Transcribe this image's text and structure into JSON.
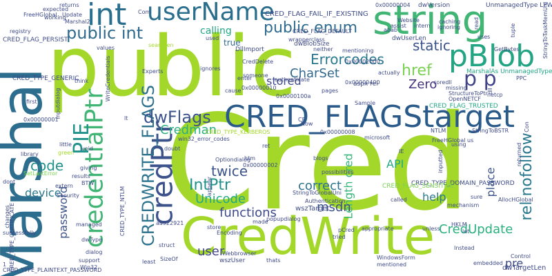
{
  "words": [
    {
      "text": "Cred",
      "color": "#a3d82a"
    },
    {
      "text": "public",
      "color": "#a3d82a"
    },
    {
      "text": "CredWrite",
      "color": "#a3d82a"
    },
    {
      "text": "Marshal",
      "color": "#2d6e8e"
    },
    {
      "text": "string",
      "color": "#41b574"
    },
    {
      "text": "CRED_FLAGStarget",
      "color": "#2a5a8a"
    },
    {
      "text": "userName",
      "color": "#2a6e8e"
    },
    {
      "text": "int",
      "color": "#2a6e8e"
    },
    {
      "text": "credentialPtr",
      "color": "#41b574"
    },
    {
      "text": "credPtr",
      "color": "#3b528b"
    },
    {
      "text": "pBlob",
      "color": "#23a483"
    },
    {
      "text": "public enum",
      "color": "#2f6b8e"
    },
    {
      "text": "public int",
      "color": "#2f6b8e"
    },
    {
      "text": "CREDWRITE_FLAGS",
      "color": "#2c728e"
    },
    {
      "text": "rel nofollow",
      "color": "#2a788e"
    },
    {
      "text": "PIE",
      "color": "#21918c"
    },
    {
      "text": "p p",
      "color": "#414487"
    },
    {
      "text": "dwFlags",
      "color": "#3b528b"
    },
    {
      "text": "IntPtr",
      "color": "#21918c"
    },
    {
      "text": "Credman",
      "color": "#2ab07f"
    },
    {
      "text": "code",
      "color": "#21918c"
    },
    {
      "text": "Errorcodes",
      "color": "#2a788e"
    },
    {
      "text": "CharSet",
      "color": "#31688e"
    },
    {
      "text": "href",
      "color": "#7ad151"
    },
    {
      "text": "static",
      "color": "#3b528b"
    },
    {
      "text": "Zero",
      "color": "#46337e"
    },
    {
      "text": "stored",
      "color": "#3e4a89"
    },
    {
      "text": "Unicode",
      "color": "#22a884"
    },
    {
      "text": "twice",
      "color": "#3b528b"
    },
    {
      "text": "functions",
      "color": "#3e4a89"
    },
    {
      "text": "CredUpdate",
      "color": "#2ab07f"
    },
    {
      "text": "correct",
      "color": "#2c728e"
    },
    {
      "text": "Length cred",
      "color": "#35b779"
    },
    {
      "text": "msdn",
      "color": "#3b528b"
    },
    {
      "text": "device",
      "color": "#2a788e"
    },
    {
      "text": "password",
      "color": "#3b528b"
    },
    {
      "text": "user",
      "color": "#414487"
    },
    {
      "text": "place",
      "color": "#3b528b"
    },
    {
      "text": "help",
      "color": "#2a788e"
    },
    {
      "text": "API",
      "color": "#22a884"
    },
    {
      "text": "calling",
      "color": "#22a884"
    },
    {
      "text": "pre",
      "color": "#3e4a89"
    },
    {
      "text": "true",
      "color": "#31688e"
    },
    {
      "text": "CRED_FLAG_FAIL_IF_EXISTING",
      "color": "#3e4a89"
    },
    {
      "text": "aspx rel",
      "color": "#3e4a89"
    },
    {
      "text": "dwTargetLen",
      "color": "#3e4a89"
    },
    {
      "text": "wszTarget",
      "color": "#3e4a89"
    },
    {
      "text": "dwUserLen",
      "color": "#3e4a89"
    },
    {
      "text": "dwBlobSize",
      "color": "#3e4a89"
    },
    {
      "text": "dwVersion",
      "color": "#3e4a89"
    },
    {
      "text": "CRED_FLAG_PERSIST",
      "color": "#3e4a89"
    },
    {
      "text": "UnmanagedType LPWStr",
      "color": "#3e4a89"
    },
    {
      "text": "MarshalAs UnmanagedType",
      "color": "#22a884"
    },
    {
      "text": "CRED_FLAG_TRUSTED",
      "color": "#22a884"
    },
    {
      "text": "CRED_TYPE_DOMAIN_PASSWORD",
      "color": "#3e4a89"
    },
    {
      "text": "CRED_FLAG_SENSITIVE",
      "color": "#7ad151"
    },
    {
      "text": "CRED_TYPE_GENERIC",
      "color": "#3e4a89"
    },
    {
      "text": "CRED_TYPE_CERTIFICATE",
      "color": "#3e4a89"
    },
    {
      "text": "CRED_TYPE_PLAINTEXT_PASSWORD",
      "color": "#3e4a89"
    },
    {
      "text": "CRED_FLAG_DEFAULT",
      "color": "#3e4a89"
    },
    {
      "text": "CRED_TYPE_NTLM",
      "color": "#3e4a89"
    },
    {
      "text": "CRED_TYPE_KERBEROS",
      "color": "#a3d82a"
    },
    {
      "text": "WriteCredentials",
      "color": "#3e4a89"
    },
    {
      "text": "win32_error_codes",
      "color": "#3e4a89"
    },
    {
      "text": "StringToGlobalUni",
      "color": "#3e4a89"
    },
    {
      "text": "StringToBSTR",
      "color": "#3e4a89"
    },
    {
      "text": "StructureToPtr",
      "color": "#3e4a89"
    },
    {
      "text": "AllocHGlobal",
      "color": "#3e4a89"
    },
    {
      "text": "FreeHGlobal",
      "color": "#3e4a89"
    },
    {
      "text": "FreeHGlobal us",
      "color": "#3e4a89"
    },
    {
      "text": "SetLastError",
      "color": "#7ad151"
    },
    {
      "text": "DllImport",
      "color": "#3e4a89"
    },
    {
      "text": "CredDelete",
      "color": "#3e4a89"
    },
    {
      "text": "popupdialog",
      "color": "#3e4a89"
    },
    {
      "text": "inputdialog",
      "color": "#3e4a89"
    },
    {
      "text": "Optiondialog",
      "color": "#3e4a89"
    },
    {
      "text": "wszUser",
      "color": "#3e4a89"
    },
    {
      "text": "WindowsForm",
      "color": "#3e4a89"
    },
    {
      "text": "Authentication",
      "color": "#3e4a89"
    },
    {
      "text": "authenticate",
      "color": "#3e4a89"
    },
    {
      "text": "wrapperclass",
      "color": "#3e4a89"
    },
    {
      "text": "OpenNETCF",
      "color": "#3e4a89"
    },
    {
      "text": "StringToTaskMemUni",
      "color": "#3e4a89"
    },
    {
      "text": "GetBytes",
      "color": "#3e4a89"
    },
    {
      "text": "mentioning",
      "color": "#3e4a89"
    },
    {
      "text": "possibilities",
      "color": "#3e4a89"
    },
    {
      "text": "appropriate",
      "color": "#3e4a89"
    },
    {
      "text": "mechanism",
      "color": "#3e4a89"
    },
    {
      "text": "successfully",
      "color": "#3e4a89"
    },
    {
      "text": "Encoding",
      "color": "#3e4a89"
    },
    {
      "text": "functions",
      "color": "#3e4a89"
    },
    {
      "text": "0x00000001",
      "color": "#3e4a89"
    },
    {
      "text": "0x00000002",
      "color": "#3e4a89"
    },
    {
      "text": "0x00000004",
      "color": "#3e4a89"
    },
    {
      "text": "0x00000008",
      "color": "#3e4a89"
    },
    {
      "text": "0x00000010",
      "color": "#3e4a89"
    },
    {
      "text": "0x00000400",
      "color": "#3e4a89"
    },
    {
      "text": "0x0000100a",
      "color": "#3e4a89"
    },
    {
      "text": "0x00002000",
      "color": "#3e4a89"
    },
    {
      "text": "aa922921",
      "color": "#3e4a89"
    },
    {
      "text": "Sample",
      "color": "#3e4a89"
    },
    {
      "text": "Experts",
      "color": "#3e4a89"
    },
    {
      "text": "Website",
      "color": "#3e4a89"
    },
    {
      "text": "Instead",
      "color": "#3e4a89"
    },
    {
      "text": "Control",
      "color": "#3e4a89"
    },
    {
      "text": "returns",
      "color": "#3e4a89"
    },
    {
      "text": "expected",
      "color": "#3e4a89"
    },
    {
      "text": "registry",
      "color": "#3e4a89"
    },
    {
      "text": "library",
      "color": "#3e4a89"
    },
    {
      "text": "support",
      "color": "#3e4a89"
    },
    {
      "text": "managed",
      "color": "#3e4a89"
    },
    {
      "text": "struct",
      "color": "#3e4a89"
    },
    {
      "text": "SizeOf",
      "color": "#3e4a89"
    },
    {
      "text": "thats",
      "color": "#3e4a89"
    },
    {
      "text": "unless",
      "color": "#3e4a89"
    },
    {
      "text": "HKLM",
      "color": "#3e4a89"
    },
    {
      "text": "let",
      "color": "#3e4a89"
    },
    {
      "text": "embedded",
      "color": "#3e4a89"
    },
    {
      "text": "mentioned",
      "color": "#3e4a89"
    },
    {
      "text": "dwType",
      "color": "#3e4a89"
    },
    {
      "text": "Security",
      "color": "#3e4a89"
    },
    {
      "text": "results",
      "color": "#3e4a89"
    },
    {
      "text": "giving",
      "color": "#3e4a89"
    },
    {
      "text": "extern",
      "color": "#3e4a89"
    },
    {
      "text": "dialog",
      "color": "#3e4a89"
    },
    {
      "text": "coredll",
      "color": "#3e4a89"
    },
    {
      "text": "missing",
      "color": "#3e4a89"
    },
    {
      "text": "blogs",
      "color": "#3e4a89"
    },
    {
      "text": "called",
      "color": "#3e4a89"
    },
    {
      "text": "tried",
      "color": "#3e4a89"
    },
    {
      "text": "pages",
      "color": "#3e4a89"
    },
    {
      "text": "someone",
      "color": "#3e4a89"
    },
    {
      "text": "enter",
      "color": "#3e4a89"
    },
    {
      "text": "cause",
      "color": "#3e4a89"
    },
    {
      "text": "ignores",
      "color": "#3e4a89"
    },
    {
      "text": "actually",
      "color": "#3e4a89"
    },
    {
      "text": "neither",
      "color": "#3e4a89"
    },
    {
      "text": "values",
      "color": "#3e4a89"
    },
    {
      "text": "think",
      "color": "#3e4a89"
    },
    {
      "text": "first",
      "color": "#3e4a89"
    },
    {
      "text": "working",
      "color": "#3e4a89"
    },
    {
      "text": "Update",
      "color": "#3e4a89"
    },
    {
      "text": "Marshal2",
      "color": "#3e4a89"
    },
    {
      "text": "dont",
      "color": "#3e4a89"
    },
    {
      "text": "little",
      "color": "#3e4a89"
    },
    {
      "text": "void",
      "color": "#3e4a89"
    },
    {
      "text": "used",
      "color": "#3e4a89"
    },
    {
      "text": "uses",
      "color": "#3e4a89"
    },
    {
      "text": "intern",
      "color": "#3e4a89"
    },
    {
      "text": "caching",
      "color": "#3e4a89"
    },
    {
      "text": "ignoring",
      "color": "#3e4a89"
    },
    {
      "text": "read",
      "color": "#3e4a89"
    },
    {
      "text": "tuple",
      "color": "#3e4a89"
    },
    {
      "text": "returned",
      "color": "#3e4a89"
    },
    {
      "text": "Con",
      "color": "#3e4a89"
    },
    {
      "text": "PPC",
      "color": "#3e4a89"
    },
    {
      "text": "dll",
      "color": "#3e4a89"
    },
    {
      "text": "netcp",
      "color": "#3e4a89"
    },
    {
      "text": "sure",
      "color": "#3e4a89"
    },
    {
      "text": "using",
      "color": "#3e4a89"
    },
    {
      "text": "NTLM",
      "color": "#3e4a89"
    },
    {
      "text": "made",
      "color": "#3e4a89"
    },
    {
      "text": "store",
      "color": "#3e4a89"
    },
    {
      "text": "htm",
      "color": "#3e4a89"
    },
    {
      "text": "ret",
      "color": "#3e4a89"
    },
    {
      "text": "Now",
      "color": "#3e4a89"
    },
    {
      "text": "microsoft",
      "color": "#3e4a89"
    },
    {
      "text": "Webbrowser",
      "color": "#3e4a89"
    },
    {
      "text": "least",
      "color": "#3e4a89"
    },
    {
      "text": "appear",
      "color": "#3e4a89"
    },
    {
      "text": "doubt",
      "color": "#3e4a89"
    },
    {
      "text": "Win32",
      "color": "#3e4a89"
    },
    {
      "text": "BTW",
      "color": "#3e4a89"
    },
    {
      "text": "pCred",
      "color": "#3e4a89"
    },
    {
      "text": "IE",
      "color": "#3e4a89"
    },
    {
      "text": "CF",
      "color": "#3e4a89"
    },
    {
      "text": "lt",
      "color": "#3e4a89"
    },
    {
      "text": "Com",
      "color": "#3e4a89"
    },
    {
      "text": "searchen",
      "color": "#a3d82a"
    },
    {
      "text": "inputted",
      "color": "#3e4a89"
    },
    {
      "text": "green",
      "color": "#a3d82a"
    },
    {
      "text": "assist",
      "color": "#3e4a89"
    },
    {
      "text": "abab",
      "color": "#3e4a89"
    },
    {
      "text": "changes",
      "color": "#3e4a89"
    },
    {
      "text": "1",
      "color": "#3e4a89"
    }
  ]
}
